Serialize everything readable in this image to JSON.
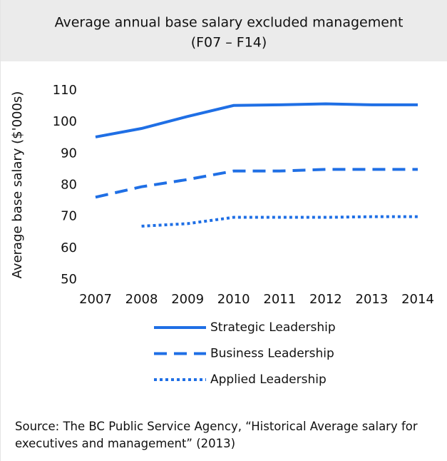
{
  "chart_data": {
    "type": "line",
    "title": "Average annual base salary excluded management",
    "subtitle": "(F07 – F14)",
    "ylabel": "Average base salary ($'000s)",
    "categories": [
      "2007",
      "2008",
      "2009",
      "2010",
      "2011",
      "2012",
      "2013",
      "2014"
    ],
    "series": [
      {
        "name": "Strategic Leadership",
        "color": "#1f6fe5",
        "style": "solid",
        "values": [
          95.3,
          98,
          101.8,
          105.3,
          105.5,
          105.8,
          105.5,
          105.5
        ]
      },
      {
        "name": "Business Leadership",
        "color": "#1f6fe5",
        "style": "dashed",
        "values": [
          76.2,
          79.5,
          81.8,
          84.5,
          84.5,
          85,
          85,
          85
        ]
      },
      {
        "name": "Applied Leadership",
        "color": "#1f6fe5",
        "style": "dotted",
        "values": [
          null,
          67,
          67.8,
          69.8,
          69.8,
          69.8,
          70,
          70
        ]
      }
    ],
    "ylim": [
      50,
      110
    ],
    "yticks": [
      50,
      60,
      70,
      80,
      90,
      100,
      110
    ],
    "grid": false,
    "source": "Source: The BC Public Service Agency, “Historical Average salary for executives and management” (2013)"
  }
}
